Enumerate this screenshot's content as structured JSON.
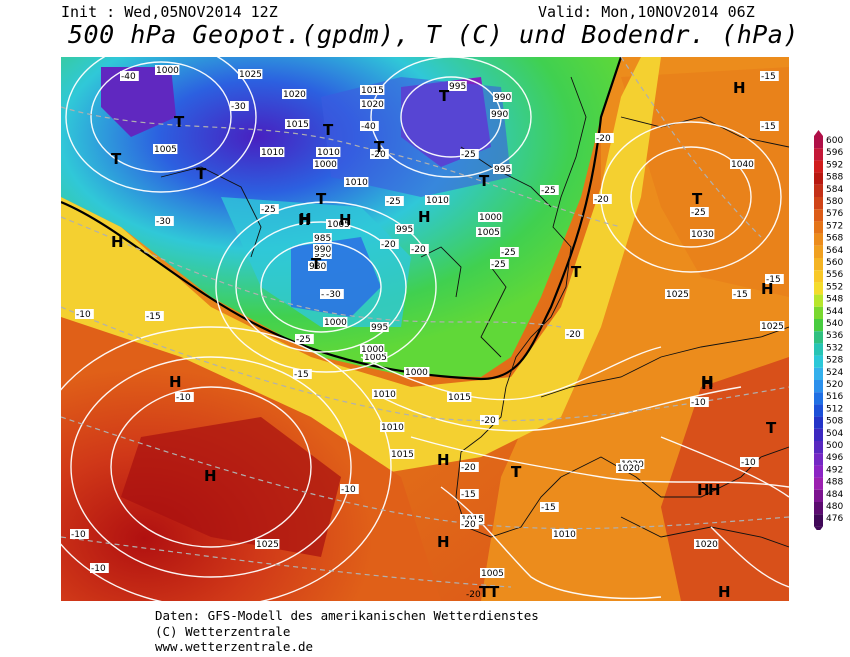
{
  "header": {
    "init": "Init : Wed,05NOV2014 12Z",
    "valid": "Valid: Mon,10NOV2014 06Z",
    "title": "500 hPa Geopot.(gpdm), T (C) und Bodendr. (hPa)"
  },
  "footer": {
    "line1": "Daten: GFS-Modell des amerikanischen Wetterdienstes",
    "line2": "(C) Wetterzentrale",
    "line3": "www.wetterzentrale.de"
  },
  "colorbar": {
    "levels": [
      "600",
      "596",
      "592",
      "588",
      "584",
      "580",
      "576",
      "572",
      "568",
      "564",
      "560",
      "556",
      "552",
      "548",
      "544",
      "540",
      "536",
      "532",
      "528",
      "524",
      "520",
      "516",
      "512",
      "508",
      "504",
      "500",
      "496",
      "492",
      "488",
      "484",
      "480",
      "476"
    ],
    "colors": [
      "#b01048",
      "#c41838",
      "#d01c1c",
      "#b81810",
      "#c43018",
      "#d04418",
      "#dc5c18",
      "#e47418",
      "#ec8c1c",
      "#f0a020",
      "#f4b424",
      "#f8c828",
      "#f4dc2c",
      "#b8e62c",
      "#7ad830",
      "#48cc40",
      "#30c080",
      "#28c4b4",
      "#2cc8d8",
      "#34b0ec",
      "#2c90ec",
      "#2070e4",
      "#1c50d8",
      "#2434c8",
      "#3c28c0",
      "#5828c0",
      "#7428c4",
      "#8c24c4",
      "#9c20b0",
      "#7c1490",
      "#5c0c70",
      "#400858"
    ]
  },
  "pressure_labels": [
    "1000",
    "1025",
    "1020",
    "1015",
    "1015",
    "1020",
    "995",
    "990",
    "990",
    "995",
    "1005",
    "1010",
    "1010",
    "1000",
    "1010",
    "1010",
    "995",
    "1005",
    "1000",
    "1005",
    "1010",
    "1040",
    "1030",
    "1025",
    "1025",
    "1020",
    "1020",
    "1025",
    "1015",
    "1010",
    "1015",
    "1010",
    "1005",
    "1000",
    "990",
    "995",
    "1000",
    "1000",
    "1005",
    "1010",
    "1015",
    "990",
    "980",
    "985",
    "1020"
  ],
  "temp_labels": [
    "-40",
    "-30",
    "-40",
    "-25",
    "-20",
    "-25",
    "-30",
    "-25",
    "-20",
    "-20",
    "-10",
    "-15",
    "-15",
    "-20",
    "-25",
    "-25",
    "-20",
    "-15",
    "-15",
    "-10",
    "-10",
    "-10",
    "-10",
    "-15",
    "-20",
    "-15",
    "-20",
    "-25",
    "-30",
    "-20",
    "-15",
    "-15",
    "-10",
    "-10",
    "-30",
    "-25",
    "-20",
    "-25",
    "-20"
  ],
  "pressure_centers": [
    "H",
    "T",
    "T",
    "T",
    "T",
    "T",
    "T",
    "T",
    "H",
    "H",
    "T",
    "H",
    "H",
    "H",
    "H",
    "T",
    "T",
    "H",
    "H",
    "H",
    "T",
    "H",
    "H",
    "T",
    "H",
    "H",
    "T",
    "H",
    "H",
    "T",
    "T",
    "H",
    "T"
  ]
}
